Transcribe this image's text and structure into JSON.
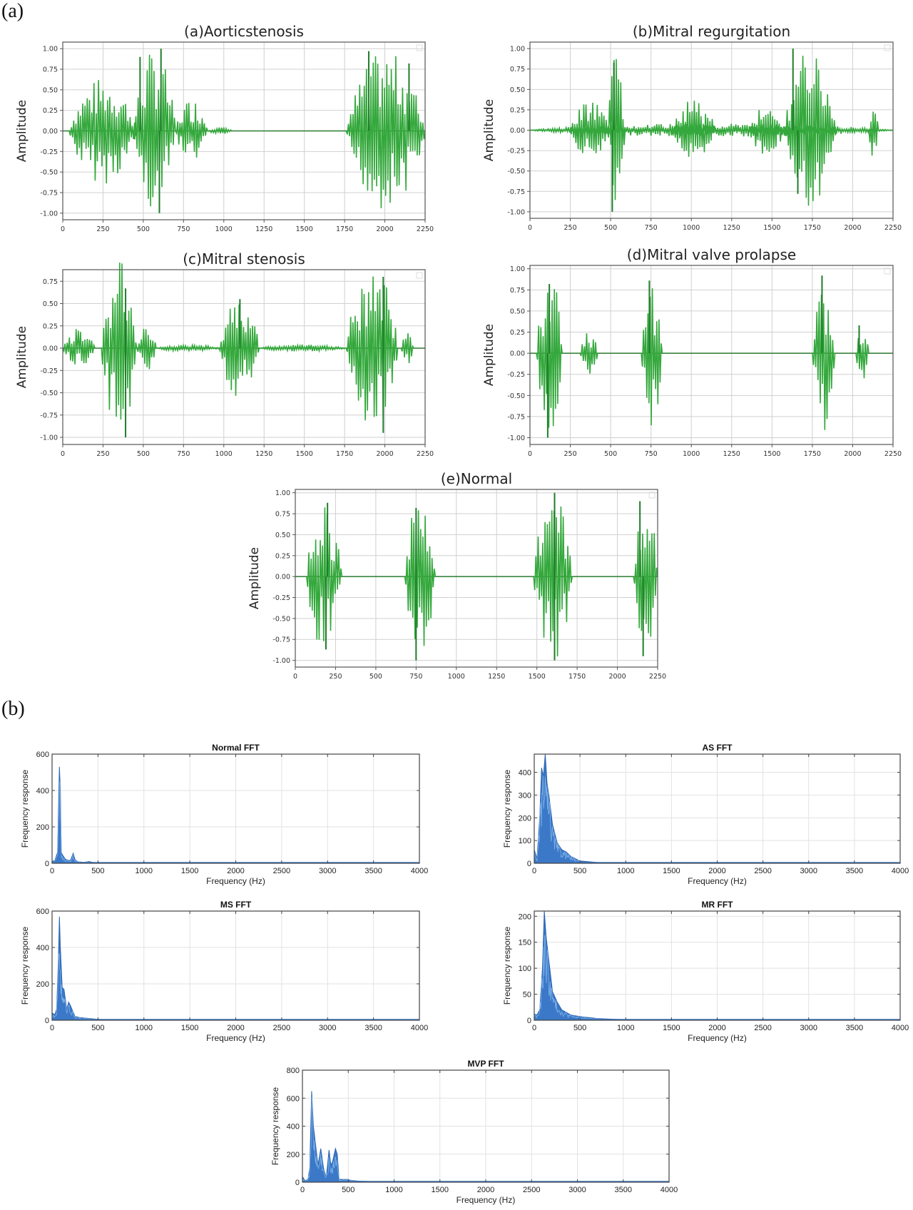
{
  "panels": {
    "a_label": "(a)",
    "b_label": "(b)"
  },
  "chart_data": [
    {
      "id": "wave_as",
      "type": "line",
      "title": "(a)Aorticstenosis",
      "xlabel": "",
      "ylabel": "Amplitude",
      "xlim": [
        0,
        2250
      ],
      "ylim": [
        -1.08,
        1.08
      ],
      "xticks": [
        0,
        250,
        500,
        750,
        1000,
        1250,
        1500,
        1750,
        2000,
        2250
      ],
      "yticks": [
        1.0,
        0.75,
        0.5,
        0.25,
        0.0,
        -0.25,
        -0.5,
        -0.75,
        -1.0
      ],
      "ytick_labels": [
        "1.00",
        "0.75",
        "0.50",
        "0.25",
        "0.00",
        "-0.25",
        "-0.50",
        "-0.75",
        "-1.00"
      ],
      "grid": true,
      "color": "#2e9e3a",
      "bursts": [
        {
          "start": 40,
          "end": 460,
          "peak": 0.65
        },
        {
          "start": 440,
          "end": 700,
          "peak": 1.0
        },
        {
          "start": 700,
          "end": 900,
          "peak": 0.4
        },
        {
          "start": 900,
          "end": 1050,
          "peak": 0.05
        },
        {
          "start": 1760,
          "end": 2250,
          "peak": 0.97
        }
      ],
      "notable_peaks": [
        {
          "x": 480,
          "y": 0.9
        },
        {
          "x": 610,
          "y": 1.0
        },
        {
          "x": 600,
          "y": -1.0
        },
        {
          "x": 1900,
          "y": 0.97
        },
        {
          "x": 2150,
          "y": 0.82
        }
      ]
    },
    {
      "id": "wave_mr",
      "type": "line",
      "title": "(b)Mitral regurgitation",
      "xlabel": "",
      "ylabel": "Amplitude",
      "xlim": [
        0,
        2250
      ],
      "ylim": [
        -1.08,
        1.08
      ],
      "xticks": [
        0,
        250,
        500,
        750,
        1000,
        1250,
        1500,
        1750,
        2000,
        2250
      ],
      "yticks": [
        1.0,
        0.75,
        0.5,
        0.25,
        0.0,
        -0.25,
        -0.5,
        -0.75,
        -1.0
      ],
      "ytick_labels": [
        "1.00",
        "0.75",
        "0.50",
        "0.25",
        "0.00",
        "-0.25",
        "-0.50",
        "-0.75",
        "-1.00"
      ],
      "grid": true,
      "color": "#2e9e3a",
      "bursts": [
        {
          "start": 0,
          "end": 2250,
          "peak": 0.08
        },
        {
          "start": 250,
          "end": 500,
          "peak": 0.35
        },
        {
          "start": 480,
          "end": 590,
          "peak": 1.0
        },
        {
          "start": 880,
          "end": 1150,
          "peak": 0.38
        },
        {
          "start": 1350,
          "end": 1580,
          "peak": 0.3
        },
        {
          "start": 1580,
          "end": 1900,
          "peak": 1.0
        },
        {
          "start": 2100,
          "end": 2160,
          "peak": 0.36
        }
      ],
      "notable_peaks": [
        {
          "x": 520,
          "y": 0.83
        },
        {
          "x": 510,
          "y": -1.0
        },
        {
          "x": 1630,
          "y": 1.0
        },
        {
          "x": 1660,
          "y": -0.78
        }
      ]
    },
    {
      "id": "wave_ms",
      "type": "line",
      "title": "(c)Mitral stenosis",
      "xlabel": "",
      "ylabel": "Amplitude",
      "xlim": [
        0,
        2250
      ],
      "ylim": [
        -1.08,
        0.88
      ],
      "xticks": [
        0,
        250,
        500,
        750,
        1000,
        1250,
        1500,
        1750,
        2000,
        2250
      ],
      "yticks": [
        0.75,
        0.5,
        0.25,
        0.0,
        -0.25,
        -0.5,
        -0.75,
        -1.0
      ],
      "ytick_labels": [
        "0.75",
        "0.50",
        "0.25",
        "0.00",
        "-0.25",
        "-0.50",
        "-0.75",
        "-1.00"
      ],
      "grid": true,
      "color": "#2e9e3a",
      "bursts": [
        {
          "start": 0,
          "end": 200,
          "peak": 0.22
        },
        {
          "start": 240,
          "end": 460,
          "peak": 1.0
        },
        {
          "start": 460,
          "end": 580,
          "peak": 0.27
        },
        {
          "start": 580,
          "end": 980,
          "peak": 0.04
        },
        {
          "start": 970,
          "end": 1220,
          "peak": 0.55
        },
        {
          "start": 1220,
          "end": 1760,
          "peak": 0.04
        },
        {
          "start": 1760,
          "end": 2080,
          "peak": 0.95
        },
        {
          "start": 2100,
          "end": 2180,
          "peak": 0.2
        }
      ],
      "notable_peaks": [
        {
          "x": 390,
          "y": 0.67
        },
        {
          "x": 390,
          "y": -1.0
        },
        {
          "x": 1100,
          "y": 0.55
        },
        {
          "x": 1990,
          "y": 0.8
        },
        {
          "x": 1990,
          "y": -0.95
        }
      ]
    },
    {
      "id": "wave_mvp",
      "type": "line",
      "title": "(d)Mitral valve prolapse",
      "xlabel": "",
      "ylabel": "Amplitude",
      "xlim": [
        0,
        2250
      ],
      "ylim": [
        -1.08,
        1.04
      ],
      "xticks": [
        0,
        250,
        500,
        750,
        1000,
        1250,
        1500,
        1750,
        2000,
        2250
      ],
      "yticks": [
        1.0,
        0.75,
        0.5,
        0.25,
        0.0,
        -0.25,
        -0.5,
        -0.75,
        -1.0
      ],
      "ytick_labels": [
        "1.00",
        "0.75",
        "0.50",
        "0.25",
        "0.00",
        "-0.25",
        "-0.50",
        "-0.75",
        "-1.00"
      ],
      "grid": true,
      "color": "#2e9e3a",
      "bursts": [
        {
          "start": 40,
          "end": 200,
          "peak": 1.0
        },
        {
          "start": 310,
          "end": 420,
          "peak": 0.26
        },
        {
          "start": 690,
          "end": 820,
          "peak": 0.86
        },
        {
          "start": 1750,
          "end": 1890,
          "peak": 0.92
        },
        {
          "start": 2020,
          "end": 2100,
          "peak": 0.33
        }
      ],
      "notable_peaks": [
        {
          "x": 120,
          "y": 0.82
        },
        {
          "x": 110,
          "y": -1.0
        },
        {
          "x": 740,
          "y": 0.86
        },
        {
          "x": 1810,
          "y": 0.92
        },
        {
          "x": 2040,
          "y": 0.33
        }
      ]
    },
    {
      "id": "wave_normal",
      "type": "line",
      "title": "(e)Normal",
      "xlabel": "",
      "ylabel": "Amplitude",
      "xlim": [
        0,
        2250
      ],
      "ylim": [
        -1.08,
        1.04
      ],
      "xticks": [
        0,
        250,
        500,
        750,
        1000,
        1250,
        1500,
        1750,
        2000,
        2250
      ],
      "yticks": [
        1.0,
        0.75,
        0.5,
        0.25,
        0.0,
        -0.25,
        -0.5,
        -0.75,
        -1.0
      ],
      "ytick_labels": [
        "1.00",
        "0.75",
        "0.50",
        "0.25",
        "0.00",
        "-0.25",
        "-0.50",
        "-0.75",
        "-1.00"
      ],
      "grid": true,
      "color": "#2e9e3a",
      "bursts": [
        {
          "start": 70,
          "end": 290,
          "peak": 0.9
        },
        {
          "start": 680,
          "end": 870,
          "peak": 1.0
        },
        {
          "start": 1480,
          "end": 1720,
          "peak": 1.0
        },
        {
          "start": 2100,
          "end": 2250,
          "peak": 0.95
        }
      ],
      "notable_peaks": [
        {
          "x": 200,
          "y": 0.88
        },
        {
          "x": 190,
          "y": -0.87
        },
        {
          "x": 750,
          "y": 0.82
        },
        {
          "x": 750,
          "y": -1.0
        },
        {
          "x": 1610,
          "y": 1.0
        },
        {
          "x": 1610,
          "y": -1.0
        },
        {
          "x": 2140,
          "y": 0.9
        },
        {
          "x": 2160,
          "y": -0.95
        }
      ]
    },
    {
      "id": "fft_normal",
      "type": "area",
      "title": "Normal FFT",
      "xlabel": "Frequency (Hz)",
      "ylabel": "Frequency response",
      "xlim": [
        0,
        4000
      ],
      "ylim": [
        0,
        600
      ],
      "xticks": [
        0,
        500,
        1000,
        1500,
        2000,
        2500,
        3000,
        3500,
        4000
      ],
      "yticks": [
        0,
        200,
        400,
        600
      ],
      "grid": true,
      "color": "#2f6fbf",
      "x": [
        0,
        30,
        60,
        80,
        90,
        100,
        120,
        150,
        200,
        230,
        250,
        280,
        350,
        400,
        450,
        600,
        1000,
        4000
      ],
      "values": [
        10,
        15,
        60,
        530,
        400,
        60,
        40,
        20,
        15,
        55,
        20,
        8,
        5,
        10,
        4,
        2,
        1,
        0
      ]
    },
    {
      "id": "fft_as",
      "type": "area",
      "title": "AS FFT",
      "xlabel": "Frequency (Hz)",
      "ylabel": "Frequency response",
      "xlim": [
        0,
        4000
      ],
      "ylim": [
        0,
        480
      ],
      "xticks": [
        0,
        500,
        1000,
        1500,
        2000,
        2500,
        3000,
        3500,
        4000
      ],
      "yticks": [
        0,
        100,
        200,
        300,
        400
      ],
      "grid": true,
      "color": "#2f6fbf",
      "x": [
        0,
        30,
        60,
        80,
        100,
        120,
        140,
        160,
        200,
        250,
        300,
        350,
        400,
        500,
        700,
        4000
      ],
      "values": [
        60,
        20,
        200,
        420,
        380,
        480,
        350,
        300,
        170,
        90,
        60,
        50,
        30,
        10,
        3,
        0
      ]
    },
    {
      "id": "fft_ms",
      "type": "area",
      "title": "MS FFT",
      "xlabel": "Frequency (Hz)",
      "ylabel": "Frequency response",
      "xlim": [
        0,
        4000
      ],
      "ylim": [
        0,
        600
      ],
      "xticks": [
        0,
        500,
        1000,
        1500,
        2000,
        2500,
        3000,
        3500,
        4000
      ],
      "yticks": [
        0,
        200,
        400,
        600
      ],
      "grid": true,
      "color": "#2f6fbf",
      "x": [
        0,
        30,
        50,
        70,
        80,
        90,
        110,
        130,
        160,
        180,
        200,
        250,
        300,
        400,
        500,
        600,
        4000
      ],
      "values": [
        40,
        30,
        60,
        350,
        570,
        400,
        180,
        170,
        60,
        100,
        80,
        20,
        15,
        10,
        5,
        2,
        0
      ]
    },
    {
      "id": "fft_mr",
      "type": "area",
      "title": "MR FFT",
      "xlabel": "Frequency (Hz)",
      "ylabel": "Frequency response",
      "xlim": [
        0,
        4000
      ],
      "ylim": [
        0,
        210
      ],
      "xticks": [
        0,
        500,
        1000,
        1500,
        2000,
        2500,
        3000,
        3500,
        4000
      ],
      "yticks": [
        0,
        50,
        100,
        150,
        200
      ],
      "grid": true,
      "color": "#2f6fbf",
      "x": [
        0,
        30,
        60,
        90,
        110,
        130,
        150,
        200,
        250,
        300,
        400,
        500,
        700,
        1000,
        4000
      ],
      "values": [
        12,
        10,
        20,
        100,
        210,
        160,
        130,
        55,
        35,
        20,
        10,
        7,
        3,
        1,
        0
      ]
    },
    {
      "id": "fft_mvp",
      "type": "area",
      "title": "MVP FFT",
      "xlabel": "Frequency (Hz)",
      "ylabel": "Frequency response",
      "xlim": [
        0,
        4000
      ],
      "ylim": [
        0,
        800
      ],
      "xticks": [
        0,
        500,
        1000,
        1500,
        2000,
        2500,
        3000,
        3500,
        4000
      ],
      "yticks": [
        0,
        200,
        400,
        600,
        800
      ],
      "grid": true,
      "color": "#2f6fbf",
      "x": [
        0,
        30,
        60,
        80,
        100,
        120,
        150,
        170,
        200,
        230,
        260,
        290,
        310,
        330,
        360,
        380,
        400,
        500,
        520,
        600,
        800,
        4000
      ],
      "values": [
        40,
        10,
        20,
        100,
        650,
        400,
        230,
        120,
        240,
        100,
        30,
        230,
        120,
        150,
        240,
        200,
        20,
        20,
        15,
        8,
        3,
        0
      ]
    }
  ]
}
